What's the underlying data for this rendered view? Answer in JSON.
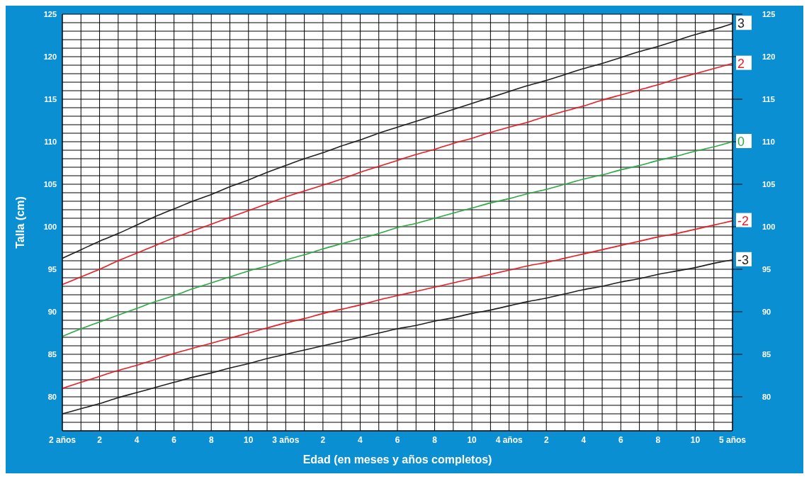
{
  "chart_data": {
    "type": "line",
    "xlabel": "Edad (en meses y años completos)",
    "ylabel": "Talla (cm)",
    "categories": [
      "2 años",
      null,
      "2",
      null,
      "4",
      null,
      "6",
      null,
      "8",
      null,
      "10",
      null,
      "3 años",
      null,
      "2",
      null,
      "4",
      null,
      "6",
      null,
      "8",
      null,
      "10",
      null,
      "4 años",
      null,
      "2",
      null,
      "4",
      null,
      "6",
      null,
      "8",
      null,
      "10",
      null,
      "5 años"
    ],
    "series": [
      {
        "name": "3",
        "color": "#231f20",
        "values": [
          96.3,
          97.3,
          98.3,
          99.2,
          100.2,
          101.2,
          102.1,
          103.0,
          103.8,
          104.7,
          105.5,
          106.4,
          107.2,
          108.0,
          108.7,
          109.5,
          110.2,
          111.0,
          111.7,
          112.4,
          113.1,
          113.8,
          114.5,
          115.2,
          115.9,
          116.6,
          117.2,
          117.9,
          118.6,
          119.2,
          119.9,
          120.6,
          121.2,
          121.9,
          122.6,
          123.2,
          123.9
        ]
      },
      {
        "name": "2",
        "color": "#ed1c24",
        "values": [
          93.2,
          94.1,
          95.0,
          96.0,
          96.9,
          97.8,
          98.7,
          99.5,
          100.3,
          101.1,
          101.9,
          102.7,
          103.5,
          104.2,
          104.9,
          105.6,
          106.4,
          107.1,
          107.8,
          108.5,
          109.1,
          109.8,
          110.4,
          111.1,
          111.7,
          112.3,
          113.0,
          113.6,
          114.2,
          114.9,
          115.5,
          116.1,
          116.7,
          117.4,
          118.0,
          118.6,
          119.2
        ]
      },
      {
        "name": "0",
        "color": "#2bab45",
        "values": [
          87.1,
          88.0,
          88.8,
          89.6,
          90.4,
          91.2,
          91.9,
          92.7,
          93.4,
          94.1,
          94.8,
          95.4,
          96.1,
          96.7,
          97.4,
          98.0,
          98.6,
          99.2,
          99.9,
          100.4,
          101.0,
          101.6,
          102.2,
          102.8,
          103.3,
          103.9,
          104.4,
          105.0,
          105.6,
          106.1,
          106.7,
          107.2,
          107.8,
          108.3,
          108.9,
          109.4,
          110.0
        ]
      },
      {
        "name": "-2",
        "color": "#ed1c24",
        "values": [
          81.0,
          81.7,
          82.4,
          83.1,
          83.7,
          84.4,
          85.1,
          85.7,
          86.3,
          86.9,
          87.5,
          88.1,
          88.7,
          89.2,
          89.8,
          90.3,
          90.8,
          91.4,
          91.9,
          92.4,
          92.9,
          93.4,
          93.9,
          94.4,
          94.9,
          95.4,
          95.8,
          96.3,
          96.8,
          97.3,
          97.8,
          98.3,
          98.8,
          99.2,
          99.7,
          100.2,
          100.7
        ]
      },
      {
        "name": "-3",
        "color": "#231f20",
        "values": [
          78.0,
          78.6,
          79.2,
          79.9,
          80.5,
          81.1,
          81.7,
          82.3,
          82.8,
          83.4,
          83.9,
          84.5,
          85.0,
          85.5,
          86.0,
          86.5,
          87.0,
          87.5,
          88.0,
          88.4,
          88.9,
          89.3,
          89.8,
          90.2,
          90.7,
          91.2,
          91.6,
          92.1,
          92.6,
          93.0,
          93.5,
          93.9,
          94.4,
          94.8,
          95.2,
          95.7,
          96.1
        ]
      }
    ],
    "ylim": [
      76,
      125
    ],
    "yticks": [
      {
        "value": 76,
        "label": null
      },
      {
        "value": 77,
        "label": null
      },
      {
        "value": 78,
        "label": null
      },
      {
        "value": 79,
        "label": null
      },
      80,
      {
        "value": 81,
        "label": null
      },
      {
        "value": 82,
        "label": null
      },
      {
        "value": 83,
        "label": null
      },
      {
        "value": 84,
        "label": null
      },
      85,
      {
        "value": 86,
        "label": null
      },
      {
        "value": 87,
        "label": null
      },
      {
        "value": 88,
        "label": null
      },
      {
        "value": 89,
        "label": null
      },
      90,
      {
        "value": 91,
        "label": null
      },
      {
        "value": 92,
        "label": null
      },
      {
        "value": 93,
        "label": null
      },
      {
        "value": 94,
        "label": null
      },
      95,
      {
        "value": 96,
        "label": null
      },
      {
        "value": 97,
        "label": null
      },
      {
        "value": 98,
        "label": null
      },
      {
        "value": 99,
        "label": null
      },
      100,
      {
        "value": 101,
        "label": null
      },
      {
        "value": 102,
        "label": null
      },
      {
        "value": 103,
        "label": null
      },
      {
        "value": 104,
        "label": null
      },
      105,
      {
        "value": 106,
        "label": null
      },
      {
        "value": 107,
        "label": null
      },
      {
        "value": 108,
        "label": null
      },
      {
        "value": 109,
        "label": null
      },
      110,
      {
        "value": 111,
        "label": null
      },
      {
        "value": 112,
        "label": null
      },
      {
        "value": 113,
        "label": null
      },
      {
        "value": 114,
        "label": null
      },
      115,
      {
        "value": 116,
        "label": null
      },
      {
        "value": 117,
        "label": null
      },
      {
        "value": 118,
        "label": null
      },
      {
        "value": 119,
        "label": null
      },
      120,
      {
        "value": 121,
        "label": null
      },
      {
        "value": 122,
        "label": null
      },
      {
        "value": 123,
        "label": null
      },
      {
        "value": 124,
        "label": null
      },
      125
    ],
    "y2lim": [
      76,
      125
    ],
    "y2ticks": [
      80,
      85,
      90,
      95,
      100,
      105,
      110,
      115,
      120,
      125
    ],
    "grid": true,
    "marker": "none",
    "line_style": "solid"
  }
}
